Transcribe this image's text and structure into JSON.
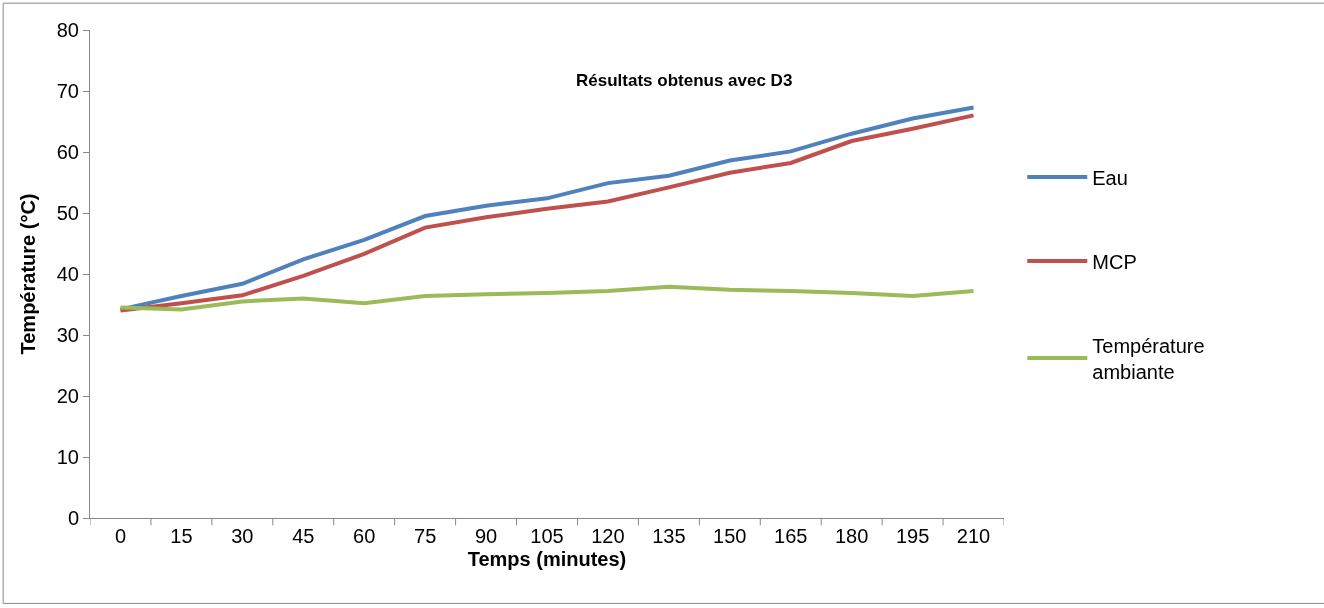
{
  "chart_data": {
    "type": "line",
    "title": "Résultats obtenus avec D3",
    "xlabel": "Temps (minutes)",
    "ylabel": "Température (°C)",
    "categories": [
      "0",
      "15",
      "30",
      "45",
      "60",
      "75",
      "90",
      "105",
      "120",
      "135",
      "150",
      "165",
      "180",
      "195",
      "210"
    ],
    "series": [
      {
        "name": "Eau",
        "color": "#4f81bd",
        "values": [
          34.2,
          36.4,
          38.4,
          42.4,
          45.6,
          49.5,
          51.2,
          52.4,
          54.9,
          56.1,
          58.6,
          60.1,
          63.0,
          65.5,
          67.3
        ]
      },
      {
        "name": "MCP",
        "color": "#c0504d",
        "values": [
          34.0,
          35.2,
          36.5,
          39.7,
          43.3,
          47.6,
          49.3,
          50.7,
          51.9,
          54.2,
          56.6,
          58.2,
          61.8,
          63.8,
          66.0
        ]
      },
      {
        "name": "Température ambiante",
        "color": "#9bbb59",
        "values": [
          34.5,
          34.2,
          35.5,
          36.0,
          35.2,
          36.4,
          36.7,
          36.9,
          37.2,
          37.9,
          37.4,
          37.2,
          36.9,
          36.4,
          37.2
        ]
      }
    ],
    "ylim": [
      0,
      80
    ],
    "yticks": [
      0,
      10,
      20,
      30,
      40,
      50,
      60,
      70,
      80
    ],
    "legend": "right",
    "marker": "none",
    "line_style": "solid"
  }
}
